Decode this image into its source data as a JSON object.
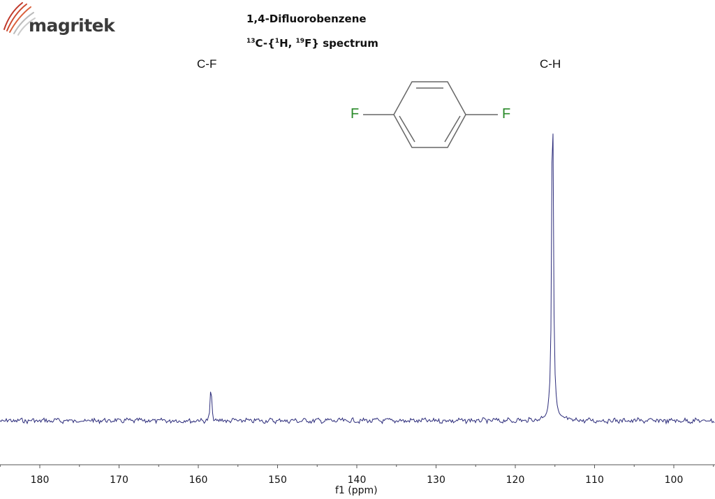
{
  "logo": {
    "text": "magritek",
    "icon": "radio-wave-arcs-icon",
    "colors": [
      "#c0392b",
      "#d9603b",
      "#b0b0b0"
    ]
  },
  "header": {
    "title": "1,4-Difluorobenzene",
    "subtitle_parts": {
      "iso_c": "13",
      "c": "C-{",
      "iso_h": "1",
      "h": "H, ",
      "iso_f": "19",
      "f": "F} spectrum"
    }
  },
  "structure": {
    "left_atom": "F",
    "right_atom": "F",
    "atom_color": "#2a8a2a",
    "bond_color": "#666666"
  },
  "chart_data": {
    "type": "line",
    "title": "1,4-Difluorobenzene",
    "subtitle": "13C-{1H, 19F} spectrum",
    "xlabel": "f1 (ppm)",
    "ylabel": "",
    "xlim": [
      185,
      95
    ],
    "x_reversed": true,
    "xticks": [
      180,
      170,
      160,
      150,
      140,
      130,
      120,
      110,
      100
    ],
    "minor_tick_step": 5,
    "grid": false,
    "line_color": "#2b2b7a",
    "peaks": [
      {
        "label": "C-F",
        "ppm": 158.4,
        "relative_height": 0.13,
        "width_ppm": 0.15
      },
      {
        "label": "C-H",
        "ppm": 115.3,
        "relative_height": 1.0,
        "width_ppm": 0.25
      }
    ],
    "baseline_noise": "low"
  },
  "peak_labels": {
    "cf": "C-F",
    "ch": "C-H"
  },
  "axis": {
    "xlabel": "f1 (ppm)"
  }
}
